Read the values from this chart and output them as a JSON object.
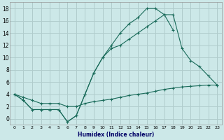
{
  "xlabel": "Humidex (Indice chaleur)",
  "bg_color": "#cce8e8",
  "grid_color": "#b0cccc",
  "line_color": "#1a6b5a",
  "line1_x": [
    0,
    1,
    2,
    3,
    4,
    5,
    6,
    7,
    8,
    9,
    10,
    11,
    12,
    13,
    14,
    15,
    16,
    17,
    18
  ],
  "line1_y": [
    4,
    3,
    1.5,
    1.5,
    1.5,
    1.5,
    -0.5,
    0.5,
    4,
    7.5,
    10,
    12,
    14,
    15.5,
    16.5,
    18,
    18,
    17,
    14.5
  ],
  "line2_x": [
    0,
    1,
    2,
    3,
    4,
    5,
    6,
    7,
    8,
    9,
    10,
    11,
    12,
    13,
    14,
    15,
    16,
    17,
    18,
    19,
    20,
    21,
    22,
    23
  ],
  "line2_y": [
    4,
    3,
    1.5,
    1.5,
    1.5,
    1.5,
    -0.5,
    0.5,
    4,
    7.5,
    10,
    11.5,
    12,
    13,
    14,
    15,
    16,
    17,
    17,
    11.5,
    9.5,
    8.5,
    7,
    5.5
  ],
  "line3_x": [
    0,
    1,
    2,
    3,
    4,
    5,
    6,
    7,
    8,
    9,
    10,
    11,
    12,
    13,
    14,
    15,
    16,
    17,
    18,
    19,
    20,
    21,
    22,
    23
  ],
  "line3_y": [
    4,
    3.5,
    3.0,
    2.5,
    2.5,
    2.5,
    2.0,
    2.0,
    2.5,
    2.8,
    3.0,
    3.2,
    3.5,
    3.8,
    4.0,
    4.2,
    4.5,
    4.8,
    5.0,
    5.2,
    5.3,
    5.4,
    5.5,
    5.5
  ],
  "ylim": [
    -1,
    19
  ],
  "xlim": [
    -0.5,
    23.5
  ],
  "yticks": [
    0,
    2,
    4,
    6,
    8,
    10,
    12,
    14,
    16,
    18
  ],
  "xticks": [
    0,
    1,
    2,
    3,
    4,
    5,
    6,
    7,
    8,
    9,
    10,
    11,
    12,
    13,
    14,
    15,
    16,
    17,
    18,
    19,
    20,
    21,
    22,
    23
  ]
}
